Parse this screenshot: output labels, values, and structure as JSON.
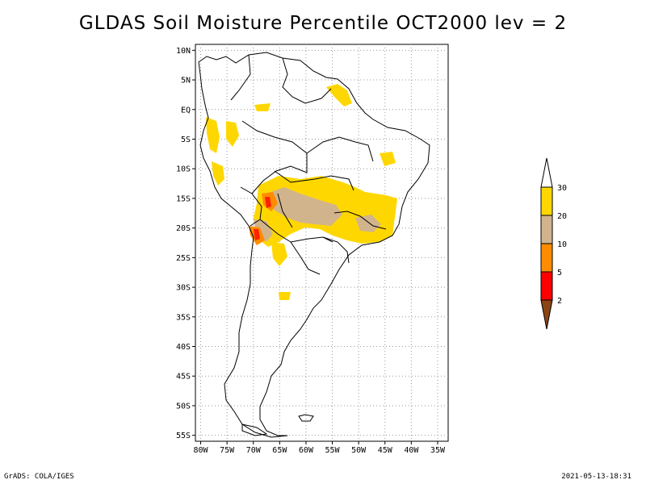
{
  "title": "GLDAS Soil Moisture Percentile OCT2000 lev = 2",
  "map": {
    "lat_labels": [
      "10N",
      "5N",
      "EQ",
      "5S",
      "10S",
      "15S",
      "20S",
      "25S",
      "30S",
      "35S",
      "40S",
      "45S",
      "50S",
      "55S"
    ],
    "lon_labels": [
      "80W",
      "75W",
      "70W",
      "65W",
      "60W",
      "55W",
      "50W",
      "45W",
      "40W",
      "35W"
    ],
    "lat_range": [
      -56,
      11
    ],
    "lon_range": [
      -81,
      -33
    ]
  },
  "colorbar": {
    "labels": [
      "2",
      "5",
      "10",
      "20",
      "30"
    ],
    "bins": [
      {
        "range": "<2",
        "color": "#8b4513"
      },
      {
        "range": "2-5",
        "color": "#ff0000"
      },
      {
        "range": "5-10",
        "color": "#ff8c00"
      },
      {
        "range": "10-20",
        "color": "#d2b48c"
      },
      {
        "range": "20-30",
        "color": "#ffd700"
      },
      {
        "range": ">30",
        "color": "#ffffff"
      }
    ]
  },
  "footer": {
    "left": "GrADS: COLA/IGES",
    "right": "2021-05-13-18:31"
  }
}
